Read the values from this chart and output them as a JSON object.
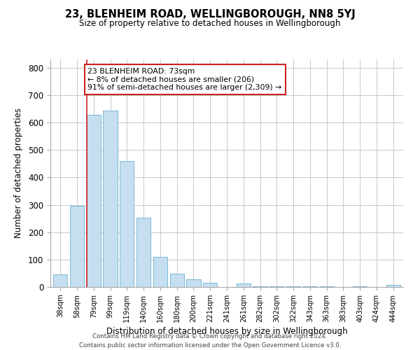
{
  "title": "23, BLENHEIM ROAD, WELLINGBOROUGH, NN8 5YJ",
  "subtitle": "Size of property relative to detached houses in Wellingborough",
  "xlabel": "Distribution of detached houses by size in Wellingborough",
  "ylabel": "Number of detached properties",
  "bar_labels": [
    "38sqm",
    "58sqm",
    "79sqm",
    "99sqm",
    "119sqm",
    "140sqm",
    "160sqm",
    "180sqm",
    "200sqm",
    "221sqm",
    "241sqm",
    "261sqm",
    "282sqm",
    "302sqm",
    "322sqm",
    "343sqm",
    "363sqm",
    "383sqm",
    "403sqm",
    "424sqm",
    "444sqm"
  ],
  "bar_values": [
    47,
    295,
    627,
    643,
    460,
    253,
    110,
    48,
    28,
    15,
    0,
    12,
    3,
    3,
    3,
    3,
    3,
    0,
    3,
    0,
    8
  ],
  "bar_color": "#c5dff0",
  "bar_edge_color": "#7ab8d8",
  "ylim": [
    0,
    830
  ],
  "yticks": [
    0,
    100,
    200,
    300,
    400,
    500,
    600,
    700,
    800
  ],
  "red_line_color": "#cc2222",
  "annotation_line1": "23 BLENHEIM ROAD: 73sqm",
  "annotation_line2": "← 8% of detached houses are smaller (206)",
  "annotation_line3": "91% of semi-detached houses are larger (2,309) →",
  "annotation_box_color": "#ffffff",
  "annotation_box_edge": "#cc2222",
  "footer": "Contains HM Land Registry data © Crown copyright and database right 2024.\nContains public sector information licensed under the Open Government Licence v3.0.",
  "bg_color": "#ffffff",
  "grid_color": "#c8c8c8"
}
